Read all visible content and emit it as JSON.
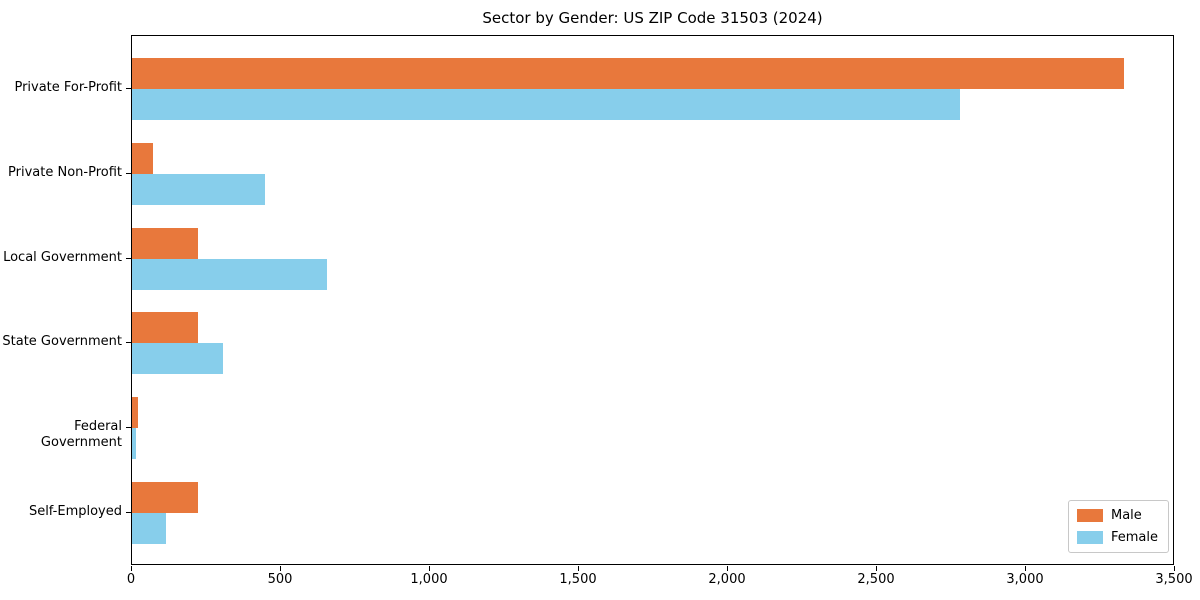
{
  "chart_data": {
    "type": "bar",
    "orientation": "horizontal",
    "title": "Sector by Gender: US ZIP Code 31503 (2024)",
    "categories": [
      "Private For-Profit",
      "Private Non-Profit",
      "Local Government",
      "State Government",
      "Federal Government",
      "Self-Employed"
    ],
    "series": [
      {
        "name": "Male",
        "color": "#E8783C",
        "values": [
          3330,
          70,
          220,
          220,
          20,
          220
        ]
      },
      {
        "name": "Female",
        "color": "#87CEEB",
        "values": [
          2780,
          445,
          655,
          305,
          15,
          115
        ]
      }
    ],
    "xlabel": "",
    "ylabel": "",
    "xlim": [
      0,
      3500
    ],
    "xticks": [
      0,
      500,
      1000,
      1500,
      2000,
      2500,
      3000,
      3500
    ],
    "xtick_labels": [
      "0",
      "500",
      "1,000",
      "1,500",
      "2,000",
      "2,500",
      "3,000",
      "3,500"
    ],
    "grid": false,
    "legend": {
      "position": "lower-right",
      "entries": [
        "Male",
        "Female"
      ]
    }
  },
  "colors": {
    "background": "#FFFFFF",
    "spine": "#000000",
    "text": "#000000",
    "legend_border": "#C8C8C8"
  }
}
